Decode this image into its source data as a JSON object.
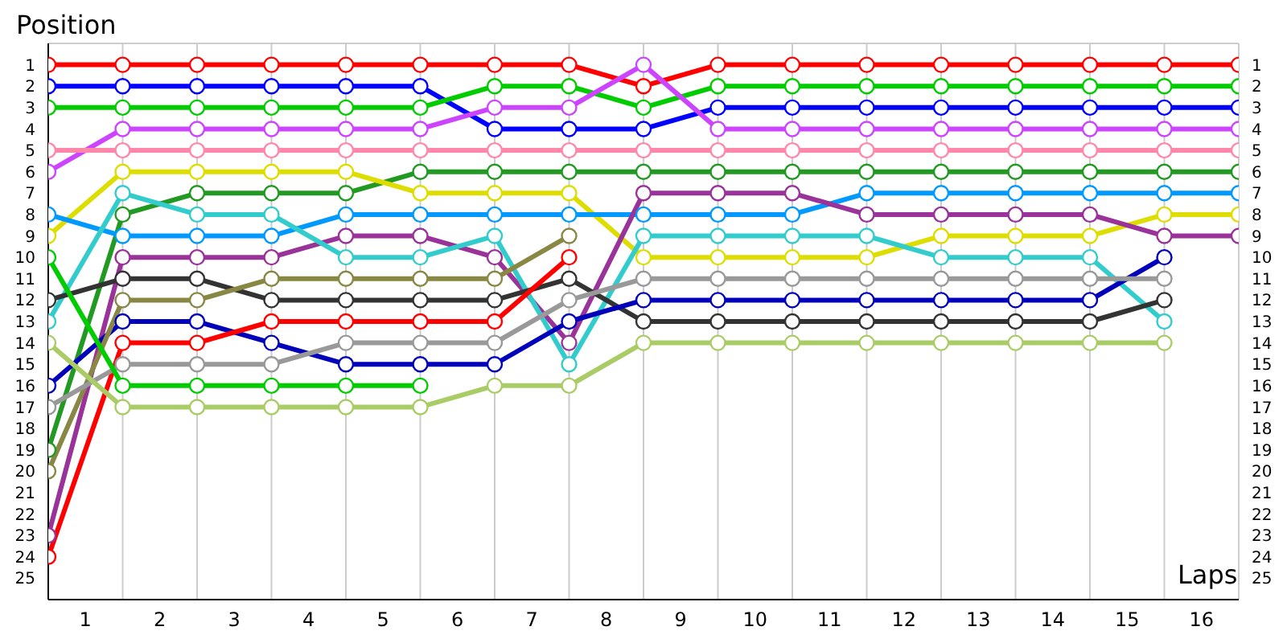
{
  "chart_data": {
    "type": "line",
    "ylabel": "Position",
    "xlabel": "Laps",
    "x": [
      0,
      1,
      2,
      3,
      4,
      5,
      6,
      7,
      8,
      9,
      10,
      11,
      12,
      13,
      14,
      15,
      16
    ],
    "series": [
      {
        "color": "#ff0000",
        "values": [
          1,
          1,
          1,
          1,
          1,
          1,
          1,
          1,
          2,
          1,
          1,
          1,
          1,
          1,
          1,
          1,
          1
        ]
      },
      {
        "color": "#0000ff",
        "values": [
          2,
          2,
          2,
          2,
          2,
          2,
          4,
          4,
          4,
          3,
          3,
          3,
          3,
          3,
          3,
          3,
          3
        ]
      },
      {
        "color": "#00cc00",
        "values": [
          3,
          3,
          3,
          3,
          3,
          3,
          2,
          2,
          3,
          2,
          2,
          2,
          2,
          2,
          2,
          2,
          2
        ]
      },
      {
        "color": "#cc44ff",
        "values": [
          6,
          4,
          4,
          4,
          4,
          4,
          3,
          3,
          1,
          4,
          4,
          4,
          4,
          4,
          4,
          4,
          4
        ]
      },
      {
        "color": "#ff88aa",
        "values": [
          5,
          5,
          5,
          5,
          5,
          5,
          5,
          5,
          5,
          5,
          5,
          5,
          5,
          5,
          5,
          5,
          5
        ]
      },
      {
        "color": "#229922",
        "values": [
          19,
          8,
          7,
          7,
          7,
          6,
          6,
          6,
          6,
          6,
          6,
          6,
          6,
          6,
          6,
          6,
          6
        ]
      },
      {
        "color": "#dddd00",
        "values": [
          9,
          6,
          6,
          6,
          6,
          7,
          7,
          7,
          10,
          10,
          10,
          10,
          9,
          9,
          9,
          8,
          8
        ]
      },
      {
        "color": "#0099ff",
        "values": [
          8,
          9,
          9,
          9,
          8,
          8,
          8,
          8,
          8,
          8,
          8,
          7,
          7,
          7,
          7,
          7,
          7
        ]
      },
      {
        "color": "#993399",
        "values": [
          23,
          10,
          10,
          10,
          9,
          9,
          10,
          14,
          7,
          7,
          7,
          8,
          8,
          8,
          8,
          9,
          9
        ]
      },
      {
        "color": "#33cccc",
        "values": [
          13,
          7,
          8,
          8,
          10,
          10,
          9,
          15,
          9,
          9,
          9,
          9,
          10,
          10,
          10,
          13,
          null
        ]
      },
      {
        "color": "#333333",
        "values": [
          12,
          11,
          11,
          12,
          12,
          12,
          12,
          11,
          13,
          13,
          13,
          13,
          13,
          13,
          13,
          12,
          null
        ]
      },
      {
        "color": "#0000bb",
        "values": [
          16,
          13,
          13,
          14,
          15,
          15,
          15,
          13,
          12,
          12,
          12,
          12,
          12,
          12,
          12,
          10,
          null
        ]
      },
      {
        "color": "#888844",
        "values": [
          20,
          12,
          12,
          11,
          11,
          11,
          11,
          9,
          null,
          null,
          null,
          null,
          null,
          null,
          null,
          null,
          null
        ]
      },
      {
        "color": "#ff0000",
        "values": [
          24,
          14,
          14,
          13,
          13,
          13,
          13,
          10,
          null,
          null,
          null,
          null,
          null,
          null,
          null,
          null,
          null
        ]
      },
      {
        "color": "#999999",
        "values": [
          17,
          15,
          15,
          15,
          14,
          14,
          14,
          12,
          11,
          11,
          11,
          11,
          11,
          11,
          11,
          11,
          null
        ]
      },
      {
        "color": "#aacc66",
        "values": [
          14,
          17,
          17,
          17,
          17,
          17,
          16,
          16,
          14,
          14,
          14,
          14,
          14,
          14,
          14,
          14,
          null
        ]
      },
      {
        "color": "#00cc00",
        "values": [
          10,
          16,
          16,
          16,
          16,
          16,
          null,
          null,
          null,
          null,
          null,
          null,
          null,
          null,
          null,
          null,
          null
        ]
      }
    ],
    "xlim": [
      0,
      16
    ],
    "xticks": [
      {
        "value": 0,
        "label": null
      },
      {
        "value": 0.5,
        "label": "1"
      },
      {
        "value": 1,
        "label": null
      },
      {
        "value": 1.5,
        "label": "2"
      },
      {
        "value": 2,
        "label": null
      },
      {
        "value": 2.5,
        "label": "3"
      },
      {
        "value": 3,
        "label": null
      },
      {
        "value": 3.5,
        "label": "4"
      },
      {
        "value": 4,
        "label": null
      },
      {
        "value": 4.5,
        "label": "5"
      },
      {
        "value": 5,
        "label": null
      },
      {
        "value": 5.5,
        "label": "6"
      },
      {
        "value": 6,
        "label": null
      },
      {
        "value": 6.5,
        "label": "7"
      },
      {
        "value": 7,
        "label": null
      },
      {
        "value": 7.5,
        "label": "8"
      },
      {
        "value": 8,
        "label": null
      },
      {
        "value": 8.5,
        "label": "9"
      },
      {
        "value": 9,
        "label": null
      },
      {
        "value": 9.5,
        "label": "10"
      },
      {
        "value": 10,
        "label": null
      },
      {
        "value": 10.5,
        "label": "11"
      },
      {
        "value": 11,
        "label": null
      },
      {
        "value": 11.5,
        "label": "12"
      },
      {
        "value": 12,
        "label": null
      },
      {
        "value": 12.5,
        "label": "13"
      },
      {
        "value": 13,
        "label": null
      },
      {
        "value": 13.5,
        "label": "14"
      },
      {
        "value": 14,
        "label": null
      },
      {
        "value": 14.5,
        "label": "15"
      },
      {
        "value": 15,
        "label": null
      },
      {
        "value": 15.5,
        "label": "16"
      },
      {
        "value": 16,
        "label": null
      }
    ],
    "ylim": [
      26,
      0
    ],
    "yticks": [
      1,
      2,
      3,
      4,
      5,
      6,
      7,
      8,
      9,
      10,
      11,
      12,
      13,
      14,
      15,
      16,
      17,
      18,
      19,
      20,
      21,
      22,
      23,
      24,
      25
    ],
    "y2lim": [
      26,
      0
    ],
    "y2ticks": [
      1,
      2,
      3,
      4,
      5,
      6,
      7,
      8,
      9,
      10,
      11,
      12,
      13,
      14,
      15,
      16,
      17,
      18,
      19,
      20,
      21,
      22,
      23,
      24,
      25
    ],
    "grid": true,
    "marker": "circle",
    "line_style": "solid"
  }
}
